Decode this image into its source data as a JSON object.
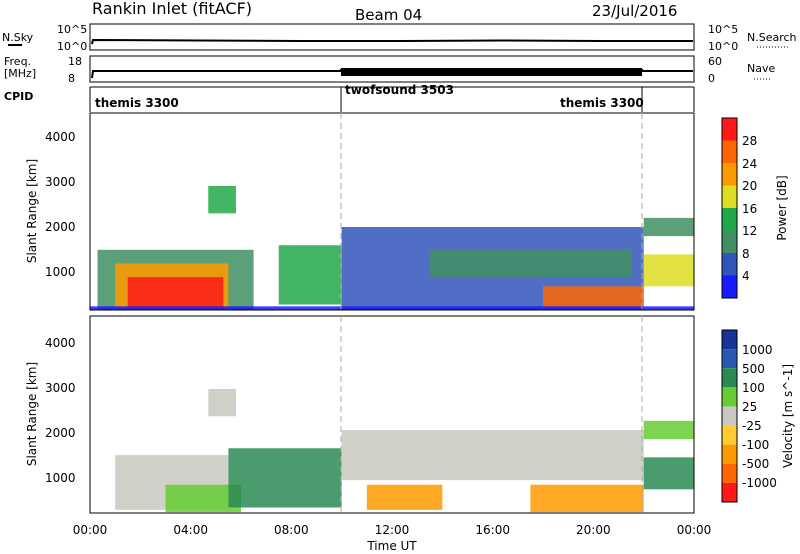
{
  "header": {
    "title": "Rankin Inlet (fitACF)",
    "beam": "Beam 04",
    "date": "23/Jul/2016"
  },
  "nsky_panel": {
    "left_label": "N.Sky",
    "left_ticks": [
      "10^5",
      "10^0"
    ],
    "right_label": "N.Search",
    "right_ticks": [
      "10^5",
      "10^0"
    ]
  },
  "freq_panel": {
    "left_label_line1": "Freq.",
    "left_label_line2": "[MHz]",
    "left_ticks": [
      "18",
      "8"
    ],
    "right_label": "Nave",
    "right_ticks": [
      "60",
      "0"
    ]
  },
  "cpid_panel": {
    "label": "CPID",
    "segments": [
      {
        "name": "themis 3300",
        "start": 0,
        "end": 10.0
      },
      {
        "name": "twofsound 3503",
        "start": 10.0,
        "end": 22.0
      },
      {
        "name": "themis 3300",
        "start": 22.0,
        "end": 24.0
      }
    ]
  },
  "colors": {
    "power": [
      "#1a1aff",
      "#3355bb",
      "#3f8f63",
      "#22a84a",
      "#dddd22",
      "#ff9900",
      "#ff6600",
      "#ff1a1a"
    ],
    "velocity": [
      "#ff1a1a",
      "#ff6600",
      "#ff9900",
      "#ffcc33",
      "#c8c8c0",
      "#66cc33",
      "#2a8a55",
      "#2a5ab0",
      "#1a3399"
    ]
  },
  "chart_data": [
    {
      "type": "heatmap",
      "name": "Power",
      "xlabel": "",
      "ylabel": "Slant Range [km]",
      "xlim": [
        0,
        24
      ],
      "ylim": [
        180,
        4500
      ],
      "yticks": [
        "1000",
        "2000",
        "3000",
        "4000"
      ],
      "colorbar": {
        "label": "Power [dB]",
        "ticks": [
          "4",
          "8",
          "12",
          "16",
          "20",
          "24",
          "28"
        ],
        "range": [
          0,
          32
        ]
      },
      "regions": [
        {
          "x": [
            0.3,
            6.5
          ],
          "y": [
            180,
            1500
          ],
          "level": 2
        },
        {
          "x": [
            1.0,
            5.5
          ],
          "y": [
            250,
            1200
          ],
          "level": 5
        },
        {
          "x": [
            1.5,
            5.3
          ],
          "y": [
            200,
            900
          ],
          "level": 7
        },
        {
          "x": [
            4.7,
            5.8
          ],
          "y": [
            2300,
            2900
          ],
          "level": 3
        },
        {
          "x": [
            7.5,
            10.0
          ],
          "y": [
            300,
            1600
          ],
          "level": 3
        },
        {
          "x": [
            10.0,
            22.0
          ],
          "y": [
            180,
            2000
          ],
          "level": 1
        },
        {
          "x": [
            13.5,
            21.5
          ],
          "y": [
            900,
            1500
          ],
          "level": 2
        },
        {
          "x": [
            18.0,
            22.0
          ],
          "y": [
            250,
            700
          ],
          "level": 6
        },
        {
          "x": [
            22.0,
            24.0
          ],
          "y": [
            700,
            1400
          ],
          "level": 4
        },
        {
          "x": [
            22.0,
            24.0
          ],
          "y": [
            1800,
            2200
          ],
          "level": 2
        },
        {
          "x": [
            0,
            24
          ],
          "y": [
            180,
            260
          ],
          "level": 0
        }
      ]
    },
    {
      "type": "heatmap",
      "name": "Velocity",
      "xlabel": "Time UT",
      "ylabel": "Slant Range [km]",
      "xlim": [
        0,
        24
      ],
      "ylim": [
        180,
        4500
      ],
      "yticks": [
        "1000",
        "2000",
        "3000",
        "4000"
      ],
      "xticks": [
        "00:00",
        "04:00",
        "08:00",
        "12:00",
        "16:00",
        "20:00",
        "00:00"
      ],
      "colorbar": {
        "label": "Velocity [m s^-1]",
        "ticks": [
          "1000",
          "500",
          "100",
          "25",
          "-25",
          "-100",
          "-500",
          "-1000"
        ]
      },
      "regions": [
        {
          "x": [
            1.0,
            5.5
          ],
          "y": [
            250,
            1450
          ],
          "level": 4
        },
        {
          "x": [
            3.0,
            6.0
          ],
          "y": [
            200,
            800
          ],
          "level": 5
        },
        {
          "x": [
            4.7,
            5.8
          ],
          "y": [
            2300,
            2900
          ],
          "level": 4
        },
        {
          "x": [
            5.5,
            10.0
          ],
          "y": [
            300,
            1600
          ],
          "level": 6
        },
        {
          "x": [
            10.0,
            22.0
          ],
          "y": [
            900,
            2000
          ],
          "level": 4
        },
        {
          "x": [
            11.0,
            14.0
          ],
          "y": [
            250,
            800
          ],
          "level": 2
        },
        {
          "x": [
            17.5,
            22.0
          ],
          "y": [
            200,
            800
          ],
          "level": 2
        },
        {
          "x": [
            22.0,
            24.0
          ],
          "y": [
            700,
            1400
          ],
          "level": 6
        },
        {
          "x": [
            22.0,
            24.0
          ],
          "y": [
            1800,
            2200
          ],
          "level": 5
        }
      ]
    }
  ]
}
